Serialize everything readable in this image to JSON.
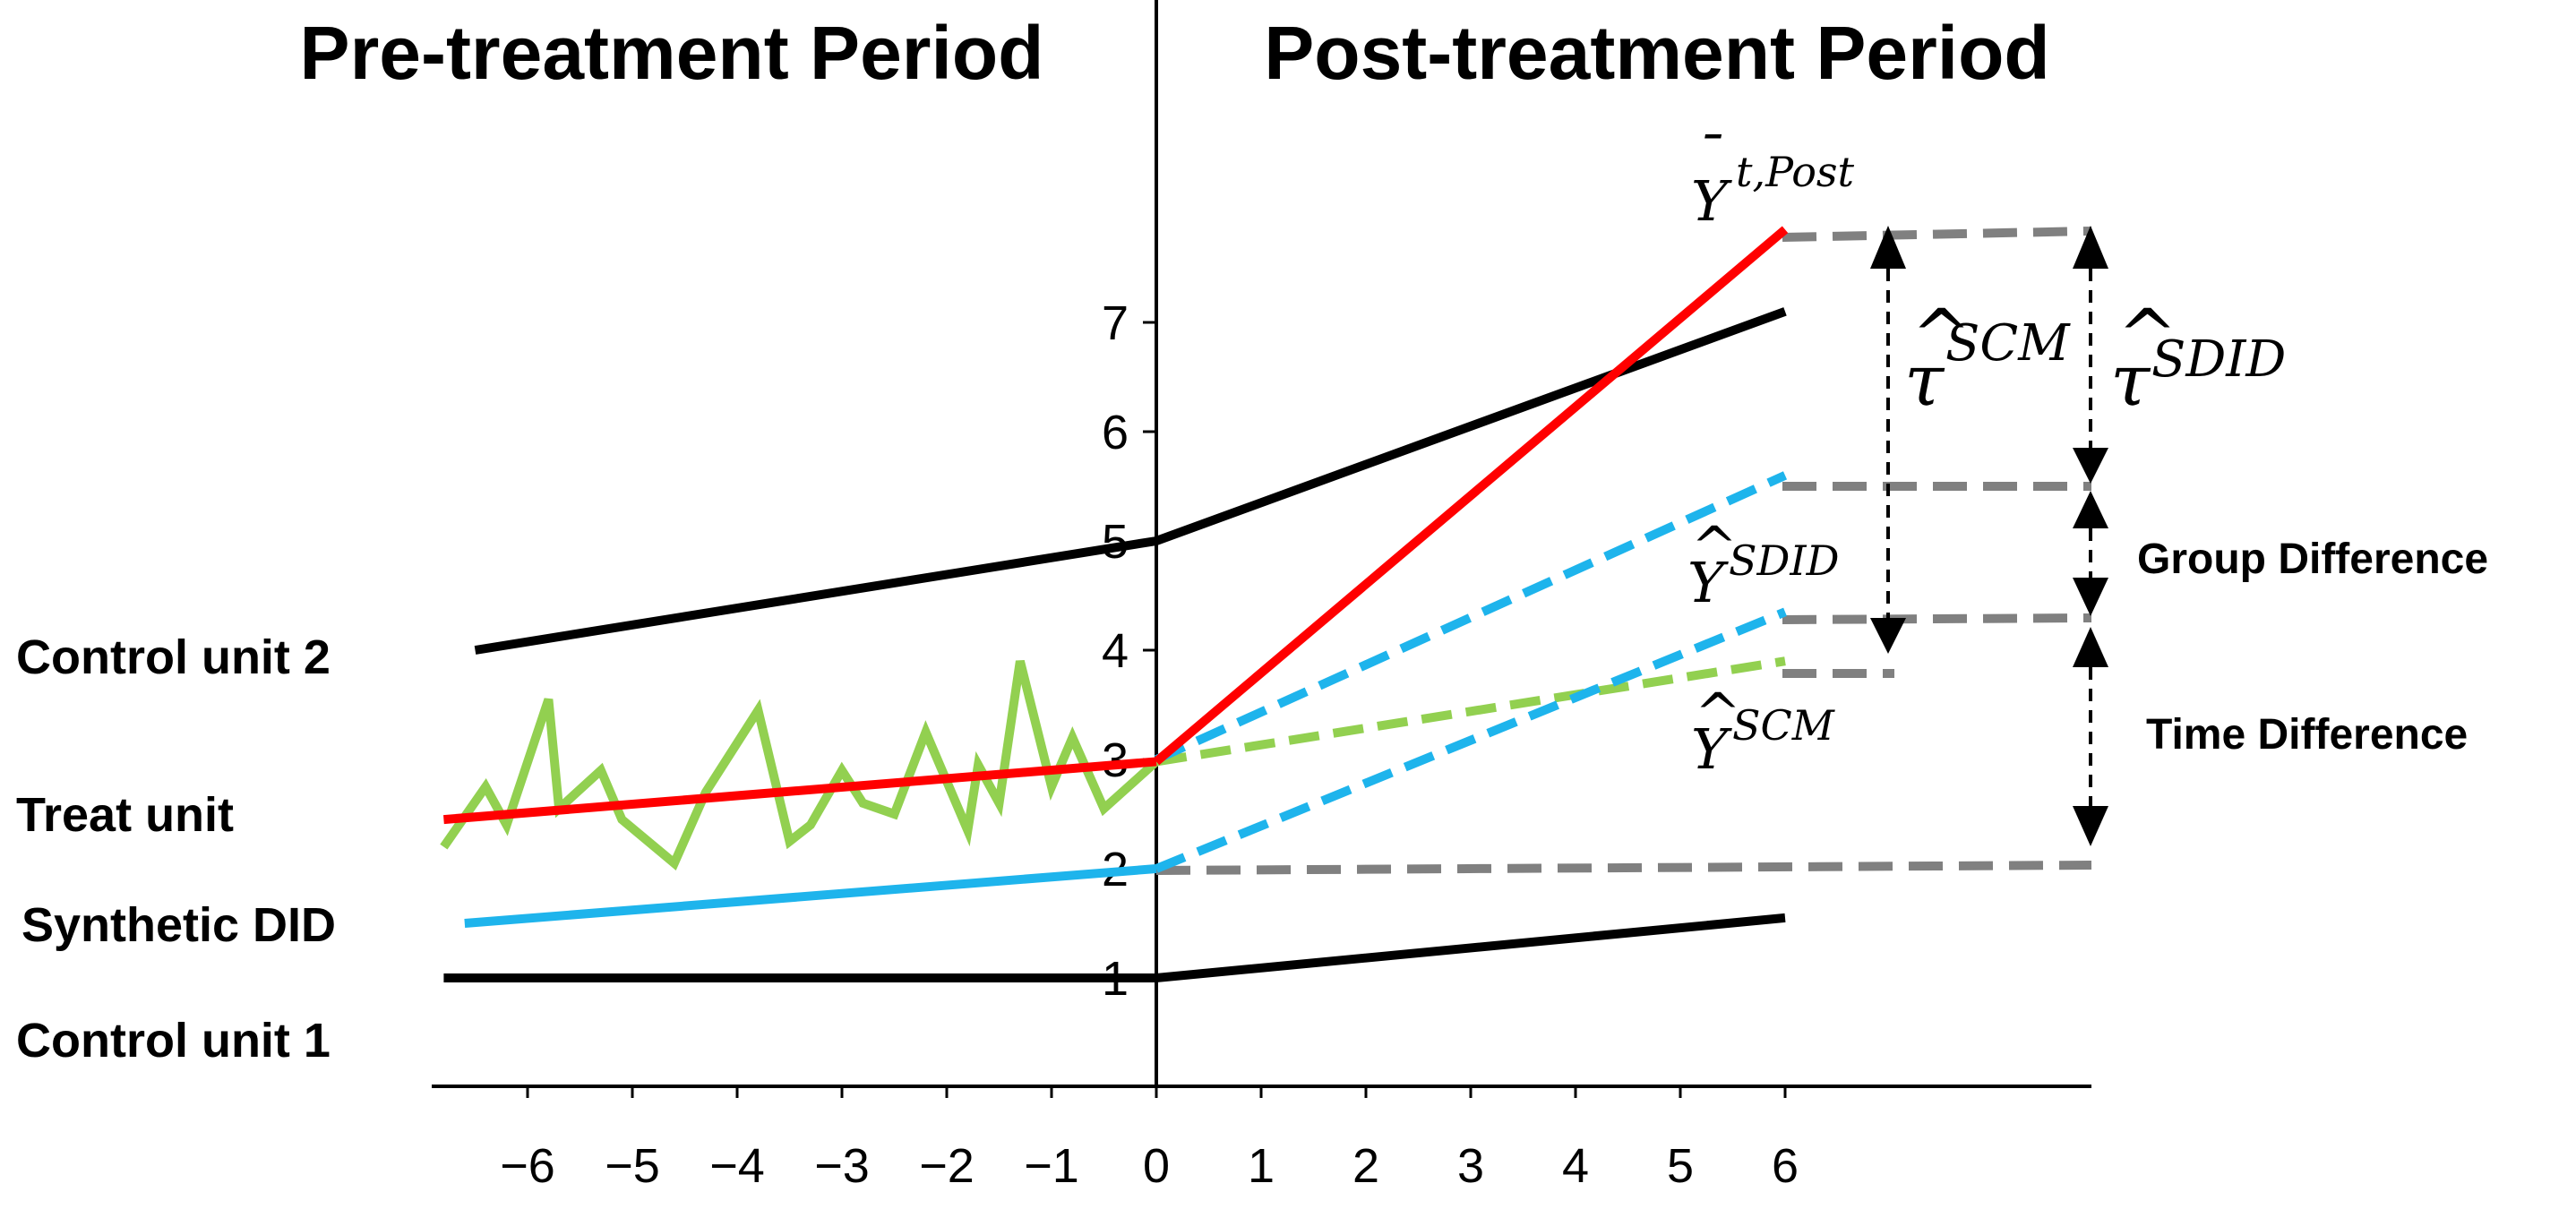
{
  "titles": {
    "pre": "Pre-treatment Period",
    "post": "Post-treatment Period"
  },
  "unit_labels": {
    "control2": "Control unit 2",
    "treat": "Treat unit",
    "sdid": "Synthetic DID",
    "control1": "Control unit 1"
  },
  "annotations": {
    "group_difference": "Group Difference",
    "time_difference": "Time Difference"
  },
  "math_labels": {
    "ybar_post": {
      "base": "Y",
      "accent": "¯",
      "sup": "t,Post"
    },
    "yhat_sdid": {
      "base": "Y",
      "accent": "^",
      "sup": "SDID"
    },
    "yhat_scm": {
      "base": "Y",
      "accent": "^",
      "sup": "SCM"
    },
    "tau_scm": {
      "base": "τ",
      "accent": "^",
      "sup": "SCM"
    },
    "tau_sdid": {
      "base": "τ",
      "accent": "^",
      "sup": "SDID"
    }
  },
  "x_ticks": [
    "−6",
    "−5",
    "−4",
    "−3",
    "−2",
    "−1",
    "0",
    "1",
    "2",
    "3",
    "4",
    "5",
    "6"
  ],
  "y_ticks": [
    "1",
    "2",
    "3",
    "4",
    "5",
    "6",
    "7"
  ],
  "colors": {
    "treat": "#ff0000",
    "control": "#000000",
    "sdid": "#1eb4ec",
    "scm": "#92d050",
    "guide": "#808080"
  },
  "series": {
    "control2": {
      "x": [
        -6.5,
        0,
        6
      ],
      "y": [
        4.0,
        5.0,
        7.1
      ]
    },
    "control1": {
      "x": [
        -6.8,
        0,
        6
      ],
      "y": [
        1.0,
        1.0,
        1.55
      ]
    },
    "treat_pre": {
      "x": [
        -6.8,
        0
      ],
      "y": [
        2.45,
        2.98
      ]
    },
    "treat_post": {
      "x": [
        0,
        6
      ],
      "y": [
        2.98,
        7.85
      ]
    },
    "sdid_pre": {
      "x": [
        -6.6,
        0
      ],
      "y": [
        1.5,
        2.0
      ]
    },
    "sdid_post_upper": {
      "x": [
        0,
        6
      ],
      "y": [
        3.0,
        5.6
      ]
    },
    "sdid_post_lower": {
      "x": [
        0,
        6
      ],
      "y": [
        2.0,
        4.35
      ]
    },
    "scm_pre": {
      "x": [
        -6.8,
        -6.4,
        -6.2,
        -5.8,
        -5.7,
        -5.3,
        -5.1,
        -4.6,
        -4.3,
        -3.8,
        -3.5,
        -3.3,
        -3.0,
        -2.8,
        -2.5,
        -2.2,
        -1.8,
        -1.7,
        -1.5,
        -1.3,
        -1.0,
        -0.8,
        -0.5,
        0
      ],
      "y": [
        2.2,
        2.75,
        2.4,
        3.55,
        2.55,
        2.9,
        2.45,
        2.05,
        2.7,
        3.45,
        2.25,
        2.4,
        2.9,
        2.6,
        2.5,
        3.25,
        2.35,
        2.95,
        2.6,
        3.9,
        2.75,
        3.2,
        2.55,
        2.98
      ]
    },
    "scm_post": {
      "x": [
        0,
        6
      ],
      "y": [
        2.98,
        3.9
      ]
    }
  }
}
